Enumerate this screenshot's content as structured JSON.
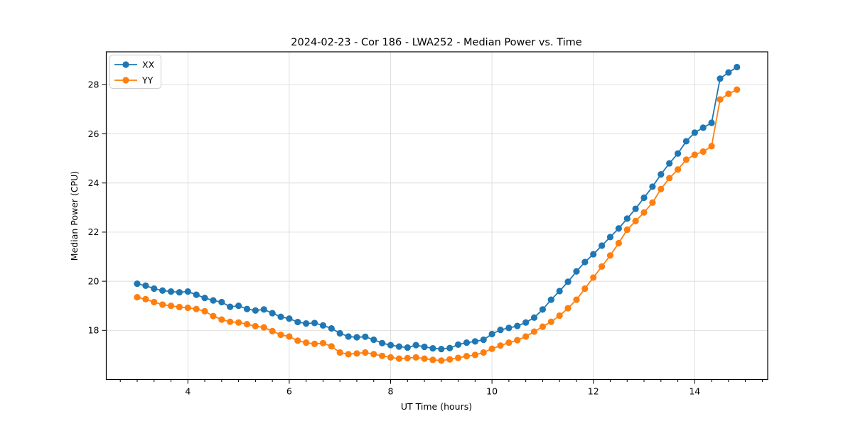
{
  "chart_data": {
    "type": "line",
    "title": "2024-02-23 - Cor 186 - LWA252 - Median Power vs. Time",
    "xlabel": "UT Time (hours)",
    "ylabel": "Median Power (CPU)",
    "xlim": [
      2.39,
      15.44
    ],
    "ylim": [
      16.0,
      29.34
    ],
    "xticks": [
      4,
      6,
      8,
      10,
      12,
      14
    ],
    "yticks": [
      18,
      20,
      22,
      24,
      26,
      28
    ],
    "x_minor_step": 0.3333,
    "grid": true,
    "legend_position": "upper-left",
    "x": [
      3.0,
      3.167,
      3.333,
      3.5,
      3.667,
      3.833,
      4.0,
      4.167,
      4.333,
      4.5,
      4.667,
      4.833,
      5.0,
      5.167,
      5.333,
      5.5,
      5.667,
      5.833,
      6.0,
      6.167,
      6.333,
      6.5,
      6.667,
      6.833,
      7.0,
      7.167,
      7.333,
      7.5,
      7.667,
      7.833,
      8.0,
      8.167,
      8.333,
      8.5,
      8.667,
      8.833,
      9.0,
      9.167,
      9.333,
      9.5,
      9.667,
      9.833,
      10.0,
      10.167,
      10.333,
      10.5,
      10.667,
      10.833,
      11.0,
      11.167,
      11.333,
      11.5,
      11.667,
      11.833,
      12.0,
      12.167,
      12.333,
      12.5,
      12.667,
      12.833,
      13.0,
      13.167,
      13.333,
      13.5,
      13.667,
      13.833,
      14.0,
      14.167,
      14.333,
      14.5,
      14.667,
      14.833
    ],
    "series": [
      {
        "name": "XX",
        "color": "#1f77b4",
        "values": [
          19.9,
          19.82,
          19.7,
          19.62,
          19.58,
          19.55,
          19.58,
          19.45,
          19.32,
          19.22,
          19.15,
          18.96,
          19.0,
          18.87,
          18.81,
          18.85,
          18.7,
          18.55,
          18.48,
          18.34,
          18.28,
          18.3,
          18.2,
          18.08,
          17.88,
          17.75,
          17.72,
          17.74,
          17.62,
          17.48,
          17.4,
          17.34,
          17.3,
          17.4,
          17.33,
          17.27,
          17.24,
          17.28,
          17.42,
          17.5,
          17.55,
          17.62,
          17.85,
          18.02,
          18.1,
          18.18,
          18.32,
          18.52,
          18.85,
          19.25,
          19.6,
          19.98,
          20.4,
          20.78,
          21.1,
          21.45,
          21.8,
          22.15,
          22.55,
          22.95,
          23.4,
          23.85,
          24.35,
          24.8,
          25.2,
          25.7,
          26.05,
          26.25,
          26.45,
          28.25,
          28.5,
          28.72
        ]
      },
      {
        "name": "YY",
        "color": "#ff7f0e",
        "values": [
          19.35,
          19.27,
          19.15,
          19.05,
          19.0,
          18.95,
          18.92,
          18.87,
          18.78,
          18.58,
          18.44,
          18.35,
          18.32,
          18.25,
          18.17,
          18.12,
          17.97,
          17.82,
          17.75,
          17.58,
          17.5,
          17.45,
          17.48,
          17.35,
          17.1,
          17.03,
          17.06,
          17.1,
          17.03,
          16.96,
          16.9,
          16.85,
          16.87,
          16.9,
          16.85,
          16.8,
          16.77,
          16.82,
          16.88,
          16.95,
          17.0,
          17.1,
          17.25,
          17.38,
          17.5,
          17.6,
          17.75,
          17.95,
          18.15,
          18.35,
          18.6,
          18.9,
          19.25,
          19.7,
          20.15,
          20.6,
          21.05,
          21.55,
          22.1,
          22.45,
          22.8,
          23.2,
          23.75,
          24.2,
          24.55,
          24.95,
          25.15,
          25.28,
          25.5,
          27.4,
          27.63,
          27.8
        ]
      }
    ]
  }
}
